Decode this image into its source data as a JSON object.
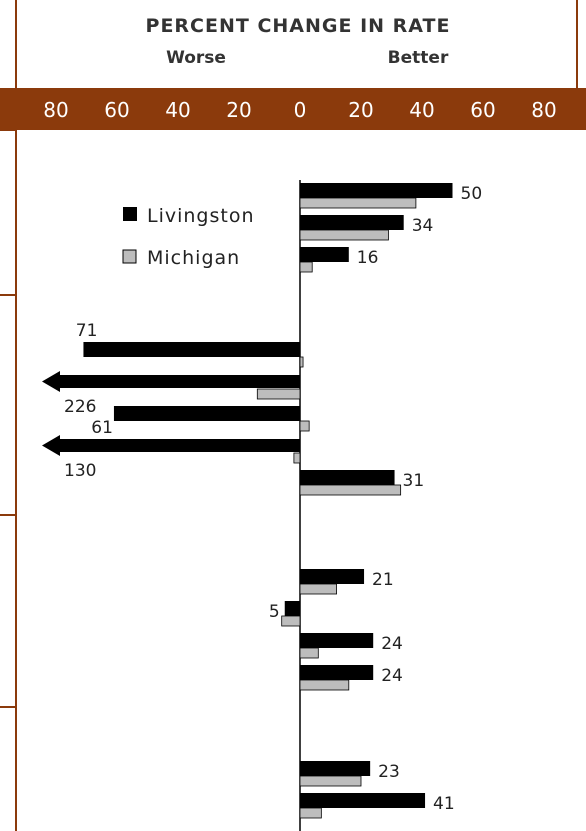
{
  "chart_data": {
    "type": "bar",
    "title": "PERCENT CHANGE IN RATE",
    "left_label": "Worse",
    "right_label": "Better",
    "xlim": [
      -80,
      80
    ],
    "ticks": [
      "80",
      "60",
      "40",
      "20",
      "0",
      "20",
      "40",
      "60",
      "80"
    ],
    "orientation": "horizontal",
    "series": [
      {
        "name": "Livingston",
        "color": "#000000"
      },
      {
        "name": "Michigan",
        "color": "#bdbdbd"
      }
    ],
    "rows": [
      {
        "livingston": 50,
        "michigan": 38,
        "label": "50"
      },
      {
        "livingston": 34,
        "michigan": 29,
        "label": "34"
      },
      {
        "livingston": 16,
        "michigan": 4,
        "label": "16"
      },
      {
        "livingston": -71,
        "michigan": 1,
        "label": "71"
      },
      {
        "livingston": -226,
        "michigan": -14,
        "label": "226",
        "arrow": true
      },
      {
        "livingston": -61,
        "michigan": 3,
        "label": "61"
      },
      {
        "livingston": -130,
        "michigan": -2,
        "label": "130",
        "arrow": true
      },
      {
        "livingston": 31,
        "michigan": 33,
        "label": "31"
      },
      {
        "livingston": 21,
        "michigan": 12,
        "label": "21"
      },
      {
        "livingston": -5,
        "michigan": -6,
        "label": "5"
      },
      {
        "livingston": 24,
        "michigan": 6,
        "label": "24"
      },
      {
        "livingston": 24,
        "michigan": 16,
        "label": "24"
      },
      {
        "livingston": 23,
        "michigan": 20,
        "label": "23"
      },
      {
        "livingston": 41,
        "michigan": 7,
        "label": "41"
      }
    ],
    "colors": {
      "band": "#8b3a0c",
      "border": "#8b3a0c",
      "livingston": "#000000",
      "michigan": "#bdbdbd"
    }
  }
}
